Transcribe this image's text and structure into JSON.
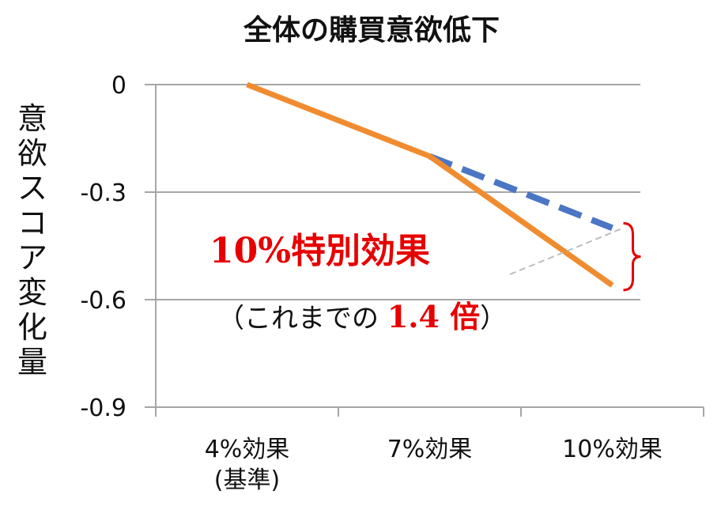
{
  "chart_data": {
    "type": "line",
    "title": "全体の購買意欲低下",
    "ylabel": "意欲スコア変化量",
    "xlabel": "",
    "categories": [
      "4%効果",
      "7%効果",
      "10%効果"
    ],
    "category_sublabels": [
      "(基準)",
      "",
      ""
    ],
    "ylim": [
      -0.9,
      0
    ],
    "yticks": [
      "0",
      "-0.3",
      "-0.6",
      "-0.9"
    ],
    "ytick_values": [
      0,
      -0.3,
      -0.6,
      -0.9
    ],
    "grid": true,
    "series": [
      {
        "values": [
          0,
          -0.2,
          -0.56
        ],
        "color": "#f08c30",
        "style": "solid"
      },
      {
        "values": [
          null,
          -0.2,
          -0.4
        ],
        "color": "#4a76c4",
        "style": "dashed"
      }
    ],
    "annotation": {
      "main": "10%特別効果",
      "sub_prefix": "（これまでの ",
      "sub_highlight": "1.4 倍",
      "sub_suffix": "）"
    }
  }
}
